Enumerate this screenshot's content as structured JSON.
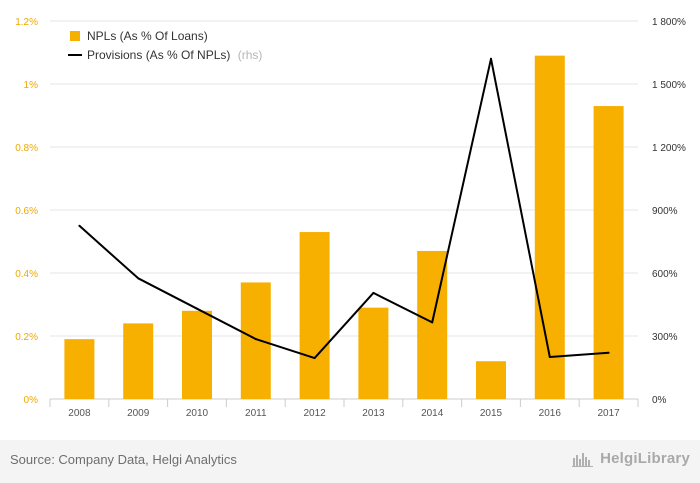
{
  "colors": {
    "bar": "#f7b000",
    "line": "#000000",
    "grid": "#e6e6e6",
    "left_tick": "#f0a800",
    "right_tick": "#333333",
    "x_tick": "#555555"
  },
  "legend": {
    "bar_label": "NPLs (As % Of Loans)",
    "line_label": "Provisions (As % Of NPLs)",
    "line_suffix": "(rhs)"
  },
  "footer": {
    "source": "Source: Company Data, Helgi Analytics",
    "brand": "HelgiLibrary",
    "brand_icon": "library-skyline-icon"
  },
  "chart_data": {
    "type": "bar",
    "categories": [
      "2008",
      "2009",
      "2010",
      "2011",
      "2012",
      "2013",
      "2014",
      "2015",
      "2016",
      "2017"
    ],
    "series": [
      {
        "name": "NPLs (As % Of Loans)",
        "type": "bar",
        "axis": "left",
        "values": [
          0.19,
          0.24,
          0.28,
          0.37,
          0.53,
          0.29,
          0.47,
          0.12,
          1.09,
          0.93
        ]
      },
      {
        "name": "Provisions (As % Of NPLs)",
        "type": "line",
        "axis": "right",
        "values": [
          825,
          575,
          430,
          285,
          195,
          505,
          365,
          1620,
          200,
          220
        ]
      }
    ],
    "y_left": {
      "min": 0,
      "max": 1.2,
      "ticks": [
        "0%",
        "0.2%",
        "0.4%",
        "0.6%",
        "0.8%",
        "1%",
        "1.2%"
      ]
    },
    "y_right": {
      "min": 0,
      "max": 1800,
      "ticks": [
        "0%",
        "300%",
        "600%",
        "900%",
        "1 200%",
        "1 500%",
        "1 800%"
      ]
    },
    "grid": true,
    "legend_position": "top-left"
  }
}
